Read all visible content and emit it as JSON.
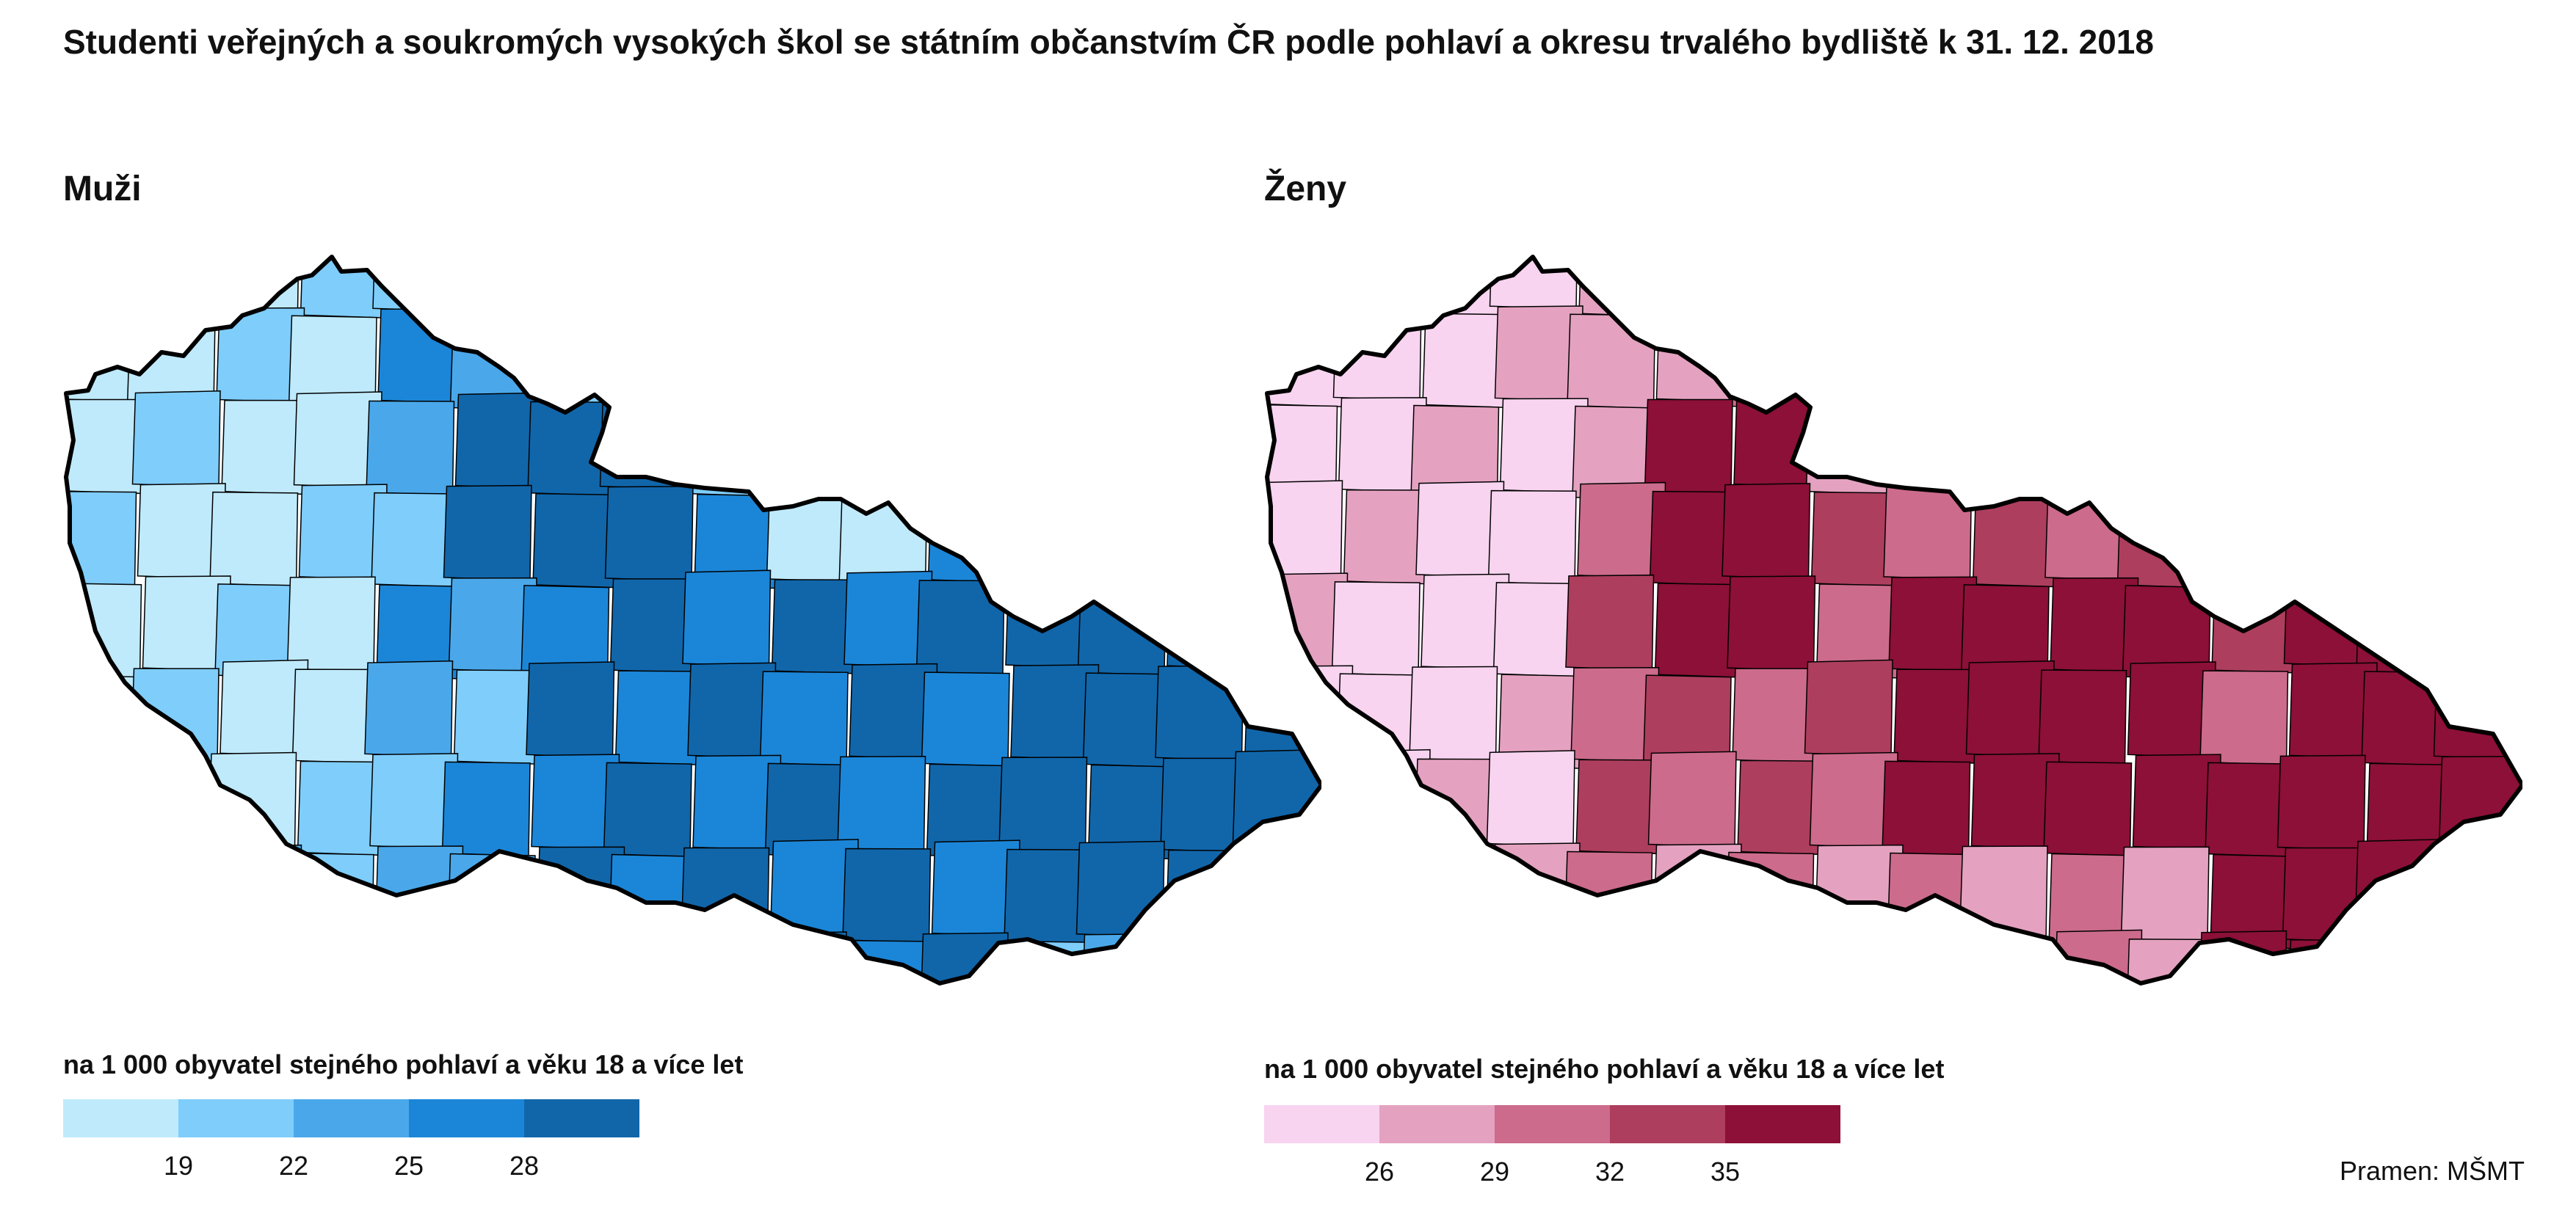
{
  "title": "Studenti veřejných a soukromých vysokých škol se státním občanstvím ČR podle pohlaví a okresu trvalého bydliště k 31. 12. 2018",
  "source": "Pramen: MŠMT",
  "panels": [
    {
      "id": "muzi",
      "title": "Muži",
      "legend_caption": "na 1 000 obyvatel stejného pohlaví a věku 18 a více let",
      "colors": [
        "#bfeafc",
        "#7fcdfb",
        "#4aa8ea",
        "#1b86d8",
        "#1166aa"
      ],
      "breaks": [
        "19",
        "22",
        "25",
        "28"
      ]
    },
    {
      "id": "zeny",
      "title": "Ženy",
      "legend_caption": "na 1 000 obyvatel stejného pohlaví a věku 18 a více let",
      "colors": [
        "#f8d4f0",
        "#e4a2c0",
        "#cc6b8b",
        "#ad3e5e",
        "#8c1038"
      ],
      "breaks": [
        "26",
        "29",
        "32",
        "35"
      ]
    }
  ]
}
